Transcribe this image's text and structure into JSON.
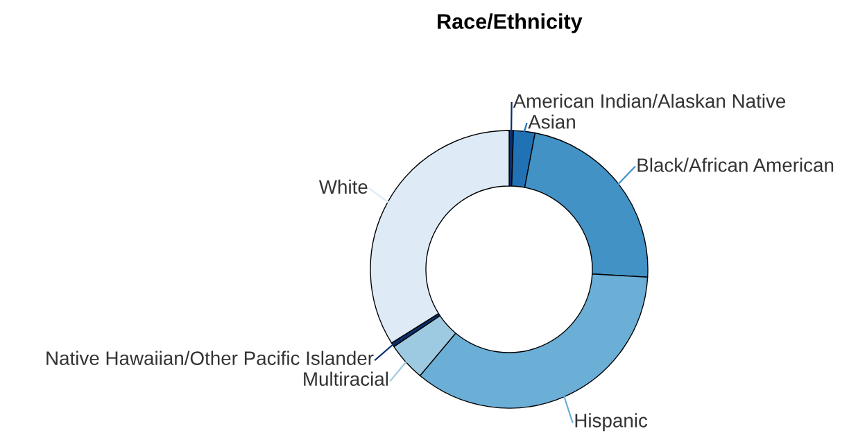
{
  "chart_data": {
    "type": "donut",
    "title": "Race/Ethnicity",
    "categories": [
      "American Indian/Alaskan Native",
      "Asian",
      "Black/African American",
      "Hispanic",
      "Multiracial",
      "Native Hawaiian/Other Pacific Islander",
      "White"
    ],
    "values": [
      0.5,
      2.5,
      22.9,
      35.2,
      4.5,
      0.5,
      33.9
    ],
    "colors": [
      "#08306b",
      "#2171b5",
      "#4292c6",
      "#6baed6",
      "#9ecae1",
      "#08306b",
      "#deebf7"
    ]
  }
}
